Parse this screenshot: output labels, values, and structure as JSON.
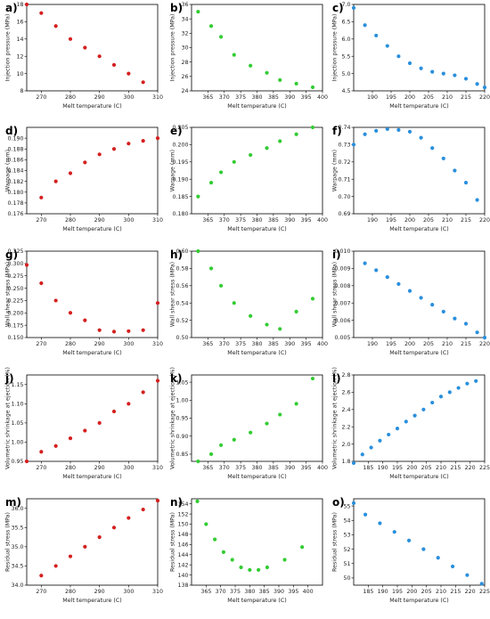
{
  "colors": {
    "red": "#d42020",
    "green": "#33cc33",
    "blue": "#2a8fdc"
  },
  "chart_data": [
    {
      "letter": "a)",
      "type": "scatter",
      "xlabel": "Melt temperature (C)",
      "ylabel": "Injection pressure (MPa)",
      "color": "red",
      "xlim": [
        265,
        310
      ],
      "ylim": [
        8,
        18
      ],
      "xticks": [
        270,
        280,
        290,
        300,
        310
      ],
      "yticks": [
        8,
        10,
        12,
        14,
        16,
        18
      ],
      "yfmt": 0,
      "x": [
        265,
        270,
        275,
        280,
        285,
        290,
        295,
        300,
        305
      ],
      "y": [
        18,
        17,
        15.5,
        14,
        13,
        12,
        11,
        10,
        9
      ]
    },
    {
      "letter": "b)",
      "type": "scatter",
      "xlabel": "Melt temperature (C)",
      "ylabel": "Injection pressure (MPa)",
      "color": "green",
      "xlim": [
        360,
        400
      ],
      "ylim": [
        24,
        36
      ],
      "xticks": [
        365,
        370,
        375,
        380,
        385,
        390,
        395,
        400
      ],
      "yticks": [
        24,
        26,
        28,
        30,
        32,
        34,
        36
      ],
      "yfmt": 0,
      "x": [
        362,
        366,
        369,
        373,
        378,
        383,
        387,
        392,
        397
      ],
      "y": [
        35,
        33,
        31.5,
        29,
        27.5,
        26.5,
        25.5,
        25,
        24.5
      ]
    },
    {
      "letter": "c)",
      "type": "scatter",
      "xlabel": "Melt temperature (C)",
      "ylabel": "Injection pressure (MPa)",
      "color": "blue",
      "xlim": [
        185,
        220
      ],
      "ylim": [
        4.5,
        7.0
      ],
      "xticks": [
        190,
        195,
        200,
        205,
        210,
        215,
        220
      ],
      "yticks": [
        4.5,
        5.0,
        5.5,
        6.0,
        6.5,
        7.0
      ],
      "yfmt": 1,
      "x": [
        185,
        188,
        191,
        194,
        197,
        200,
        203,
        206,
        209,
        212,
        215,
        218,
        220
      ],
      "y": [
        6.9,
        6.4,
        6.1,
        5.8,
        5.5,
        5.3,
        5.15,
        5.05,
        5.0,
        4.95,
        4.85,
        4.7,
        4.6
      ]
    },
    {
      "letter": "d)",
      "type": "scatter",
      "xlabel": "Melt temperature (C)",
      "ylabel": "Warpage (mm)",
      "color": "red",
      "xlim": [
        265,
        310
      ],
      "ylim": [
        0.176,
        0.192
      ],
      "xticks": [
        270,
        280,
        290,
        300,
        310
      ],
      "yticks": [
        0.176,
        0.178,
        0.18,
        0.182,
        0.184,
        0.186,
        0.188,
        0.19
      ],
      "yfmt": 3,
      "x": [
        270,
        275,
        280,
        285,
        290,
        295,
        300,
        305,
        310
      ],
      "y": [
        0.179,
        0.182,
        0.1835,
        0.1855,
        0.187,
        0.188,
        0.189,
        0.1895,
        0.19
      ]
    },
    {
      "letter": "e)",
      "type": "scatter",
      "xlabel": "Melt temperature (C)",
      "ylabel": "Warpage (mm)",
      "color": "green",
      "xlim": [
        360,
        400
      ],
      "ylim": [
        0.18,
        0.205
      ],
      "xticks": [
        365,
        370,
        375,
        380,
        385,
        390,
        395,
        400
      ],
      "yticks": [
        0.18,
        0.185,
        0.19,
        0.195,
        0.2,
        0.205
      ],
      "yfmt": 3,
      "x": [
        362,
        366,
        369,
        373,
        378,
        383,
        387,
        392,
        397
      ],
      "y": [
        0.185,
        0.189,
        0.192,
        0.195,
        0.197,
        0.199,
        0.201,
        0.203,
        0.205
      ]
    },
    {
      "letter": "f)",
      "type": "scatter",
      "xlabel": "Melt temperature (C)",
      "ylabel": "Warpage (mm)",
      "color": "blue",
      "xlim": [
        185,
        220
      ],
      "ylim": [
        0.69,
        0.74
      ],
      "xticks": [
        190,
        195,
        200,
        205,
        210,
        215,
        220
      ],
      "yticks": [
        0.69,
        0.7,
        0.71,
        0.72,
        0.73,
        0.74
      ],
      "yfmt": 2,
      "x": [
        185,
        188,
        191,
        194,
        197,
        200,
        203,
        206,
        209,
        212,
        215,
        218
      ],
      "y": [
        0.73,
        0.736,
        0.738,
        0.739,
        0.7385,
        0.7375,
        0.734,
        0.728,
        0.722,
        0.715,
        0.708,
        0.698
      ]
    },
    {
      "letter": "g)",
      "type": "scatter",
      "xlabel": "Melt temperature (C)",
      "ylabel": "Wall shear stress (MPa)",
      "color": "red",
      "xlim": [
        265,
        310
      ],
      "ylim": [
        0.15,
        0.325
      ],
      "xticks": [
        270,
        280,
        290,
        300,
        310
      ],
      "yticks": [
        0.15,
        0.175,
        0.2,
        0.225,
        0.25,
        0.275,
        0.3,
        0.325
      ],
      "yfmt": 3,
      "x": [
        265,
        270,
        275,
        280,
        285,
        290,
        295,
        300,
        305,
        310
      ],
      "y": [
        0.297,
        0.26,
        0.225,
        0.2,
        0.185,
        0.165,
        0.162,
        0.163,
        0.165,
        0.22
      ]
    },
    {
      "letter": "h)",
      "type": "scatter",
      "xlabel": "Melt temperature (C)",
      "ylabel": "Wall shear stress (MPa)",
      "color": "green",
      "xlim": [
        360,
        400
      ],
      "ylim": [
        0.5,
        0.6
      ],
      "xticks": [
        365,
        370,
        375,
        380,
        385,
        390,
        395,
        400
      ],
      "yticks": [
        0.5,
        0.52,
        0.54,
        0.56,
        0.58,
        0.6
      ],
      "yfmt": 2,
      "x": [
        362,
        366,
        369,
        373,
        378,
        383,
        387,
        392,
        397
      ],
      "y": [
        0.6,
        0.58,
        0.56,
        0.54,
        0.525,
        0.515,
        0.51,
        0.53,
        0.545
      ]
    },
    {
      "letter": "i)",
      "type": "scatter",
      "xlabel": "Melt temperature (C)",
      "ylabel": "Wall shear stress (MPa)",
      "color": "blue",
      "xlim": [
        185,
        220
      ],
      "ylim": [
        0.005,
        0.01
      ],
      "xticks": [
        190,
        195,
        200,
        205,
        210,
        215,
        220
      ],
      "yticks": [
        0.005,
        0.006,
        0.007,
        0.008,
        0.009,
        0.01
      ],
      "yfmt": 3,
      "x": [
        188,
        191,
        194,
        197,
        200,
        203,
        206,
        209,
        212,
        215,
        218,
        220
      ],
      "y": [
        0.0093,
        0.0089,
        0.0085,
        0.0081,
        0.0077,
        0.0073,
        0.0069,
        0.0065,
        0.0061,
        0.0058,
        0.0053,
        0.005
      ]
    },
    {
      "letter": "j)",
      "type": "scatter",
      "xlabel": "Melt temperature (C)",
      "ylabel": "Volumetric shrinkage at ejection (%)",
      "color": "red",
      "xlim": [
        265,
        310
      ],
      "ylim": [
        0.95,
        1.175
      ],
      "xticks": [
        270,
        280,
        290,
        300,
        310
      ],
      "yticks": [
        0.95,
        1.0,
        1.05,
        1.1,
        1.15
      ],
      "yfmt": 2,
      "x": [
        265,
        270,
        275,
        280,
        285,
        290,
        295,
        300,
        305,
        310
      ],
      "y": [
        0.95,
        0.975,
        0.99,
        1.01,
        1.03,
        1.05,
        1.08,
        1.1,
        1.13,
        1.16
      ]
    },
    {
      "letter": "k)",
      "type": "scatter",
      "xlabel": "Melt temperature (C)",
      "ylabel": "Volumetric shrinkage at ejection (%)",
      "color": "green",
      "xlim": [
        360,
        400
      ],
      "ylim": [
        0.83,
        1.07
      ],
      "xticks": [
        365,
        370,
        375,
        380,
        385,
        390,
        395,
        400
      ],
      "yticks": [
        0.85,
        0.9,
        0.95,
        1.0,
        1.05
      ],
      "yfmt": 2,
      "x": [
        362,
        366,
        369,
        373,
        378,
        383,
        387,
        392,
        397
      ],
      "y": [
        0.83,
        0.85,
        0.875,
        0.89,
        0.91,
        0.935,
        0.96,
        0.99,
        1.06
      ]
    },
    {
      "letter": "l)",
      "type": "scatter",
      "xlabel": "Melt temperature (C)",
      "ylabel": "Volumetric shrinkage at ejection (%)",
      "color": "blue",
      "xlim": [
        180,
        225
      ],
      "ylim": [
        1.8,
        2.8
      ],
      "xticks": [
        185,
        190,
        195,
        200,
        205,
        210,
        215,
        220,
        225
      ],
      "yticks": [
        1.8,
        2.0,
        2.2,
        2.4,
        2.6,
        2.8
      ],
      "yfmt": 1,
      "x": [
        180,
        183,
        186,
        189,
        192,
        195,
        198,
        201,
        204,
        207,
        210,
        213,
        216,
        219,
        222
      ],
      "y": [
        1.78,
        1.88,
        1.96,
        2.04,
        2.11,
        2.18,
        2.26,
        2.33,
        2.4,
        2.48,
        2.55,
        2.6,
        2.65,
        2.7,
        2.73
      ]
    },
    {
      "letter": "m)",
      "type": "scatter",
      "xlabel": "Melt temperature (C)",
      "ylabel": "Residual stress (MPa)",
      "color": "red",
      "xlim": [
        265,
        310
      ],
      "ylim": [
        34.0,
        36.25
      ],
      "xticks": [
        270,
        280,
        290,
        300,
        310
      ],
      "yticks": [
        34.0,
        34.5,
        35.0,
        35.5,
        36.0
      ],
      "yfmt": 1,
      "x": [
        270,
        275,
        280,
        285,
        290,
        295,
        300,
        305,
        310
      ],
      "y": [
        34.25,
        34.5,
        34.75,
        35.0,
        35.25,
        35.5,
        35.75,
        35.97,
        36.2
      ]
    },
    {
      "letter": "n)",
      "type": "scatter",
      "xlabel": "Melt temperature (C)",
      "ylabel": "Residual stress (MPa)",
      "color": "green",
      "xlim": [
        360,
        405
      ],
      "ylim": [
        138,
        155
      ],
      "xticks": [
        365,
        370,
        375,
        380,
        385,
        390,
        395,
        400
      ],
      "yticks": [
        138,
        140,
        142,
        144,
        146,
        148,
        150,
        152,
        154
      ],
      "yfmt": 0,
      "x": [
        362,
        365,
        368,
        371,
        374,
        377,
        380,
        383,
        386,
        392,
        398
      ],
      "y": [
        154.5,
        150,
        147,
        144.5,
        143,
        141.5,
        141,
        141,
        141.5,
        143,
        145.5
      ]
    },
    {
      "letter": "o)",
      "type": "scatter",
      "xlabel": "Melt temperature (C)",
      "ylabel": "Residual stress (MPa)",
      "color": "blue",
      "xlim": [
        180,
        225
      ],
      "ylim": [
        49.5,
        55.5
      ],
      "xticks": [
        185,
        190,
        195,
        200,
        205,
        210,
        215,
        220,
        225
      ],
      "yticks": [
        50,
        51,
        52,
        53,
        54,
        55
      ],
      "yfmt": 0,
      "x": [
        180,
        184,
        189,
        194,
        199,
        204,
        209,
        214,
        219,
        224
      ],
      "y": [
        55.2,
        54.4,
        53.8,
        53.2,
        52.6,
        52.0,
        51.4,
        50.8,
        50.2,
        49.6
      ]
    }
  ]
}
